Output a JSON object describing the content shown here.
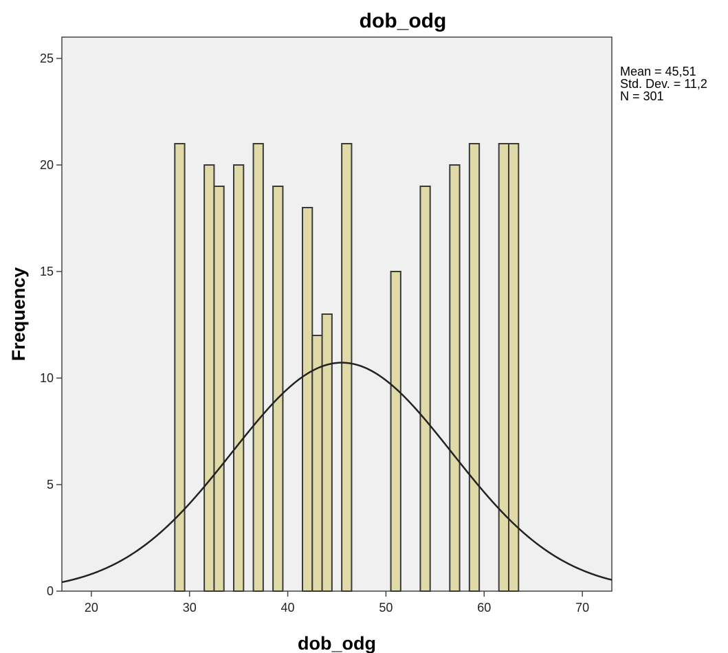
{
  "chart_data": {
    "type": "bar",
    "title": "dob_odg",
    "xlabel": "dob_odg",
    "ylabel": "Frequency",
    "xlim": [
      17,
      73
    ],
    "ylim": [
      0,
      26
    ],
    "xticks": [
      "20",
      "30",
      "40",
      "50",
      "60",
      "70"
    ],
    "yticks": [
      "0",
      "5",
      "10",
      "15",
      "20",
      "25"
    ],
    "bins": [
      {
        "x": 29,
        "count": 21
      },
      {
        "x": 32,
        "count": 20
      },
      {
        "x": 33,
        "count": 19
      },
      {
        "x": 35,
        "count": 20
      },
      {
        "x": 37,
        "count": 21
      },
      {
        "x": 39,
        "count": 19
      },
      {
        "x": 42,
        "count": 18
      },
      {
        "x": 43,
        "count": 12
      },
      {
        "x": 44,
        "count": 13
      },
      {
        "x": 46,
        "count": 21
      },
      {
        "x": 51,
        "count": 15
      },
      {
        "x": 54,
        "count": 19
      },
      {
        "x": 57,
        "count": 20
      },
      {
        "x": 59,
        "count": 21
      },
      {
        "x": 62,
        "count": 21
      },
      {
        "x": 63,
        "count": 21
      }
    ],
    "bin_width": 1,
    "normal_curve": {
      "mean": 45.51,
      "std": 11.2,
      "n": 301
    },
    "stats": [
      "Mean = 45,51",
      "Std. Dev. = 11,2",
      "N = 301"
    ],
    "colors": {
      "bar": "#e0daa9",
      "background": "#f0f0f0"
    }
  }
}
